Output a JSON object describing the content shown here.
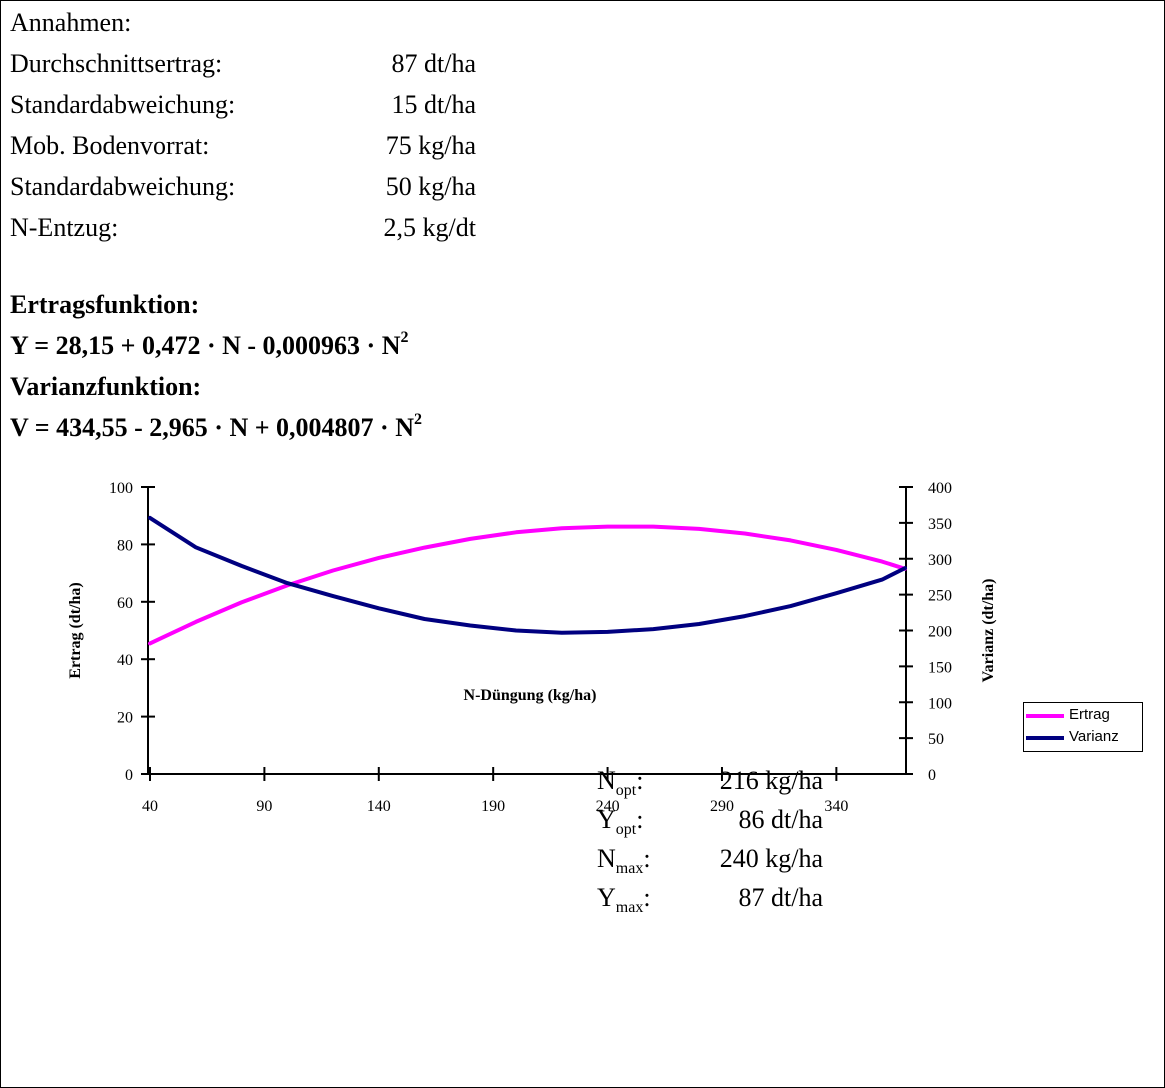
{
  "assumptions": {
    "heading": "Annahmen:",
    "rows": [
      {
        "label": "Durchschnittsertrag:",
        "value": "87 dt/ha"
      },
      {
        "label": "Standardabweichung:",
        "value": "15 dt/ha"
      },
      {
        "label": "Mob. Bodenvorrat:",
        "value": "75 kg/ha"
      },
      {
        "label": "Standardabweichung:",
        "value": "50 kg/ha"
      },
      {
        "label": "N-Entzug:",
        "value": "2,5 kg/dt"
      }
    ]
  },
  "formulas": {
    "yield_title": "Ertragsfunktion:",
    "yield_text": "Y = 28,15 + 0,472 · N - 0,000963 · N",
    "variance_title": "Varianzfunktion:",
    "variance_text": "V = 434,55 - 2,965 · N + 0,004807 · N",
    "exponent": "2"
  },
  "chart_data": {
    "type": "line",
    "xlabel": "N-Düngung (kg/ha)",
    "ylabel": "Ertrag (dt/ha)",
    "y2label": "Varianz (dt/ha)",
    "xlim": [
      40,
      370
    ],
    "ylim": [
      0,
      100
    ],
    "y2lim": [
      0,
      400
    ],
    "x_ticks": [
      40,
      90,
      140,
      190,
      240,
      290,
      340
    ],
    "y_ticks": [
      0,
      20,
      40,
      60,
      80,
      100
    ],
    "y2_ticks": [
      0,
      50,
      100,
      150,
      200,
      250,
      300,
      350,
      400
    ],
    "series": [
      {
        "name": "Ertrag",
        "axis": "left",
        "color": "#ff00ff",
        "x": [
          40,
          60,
          80,
          100,
          120,
          140,
          160,
          180,
          200,
          220,
          240,
          260,
          280,
          300,
          320,
          340,
          360,
          370
        ],
        "y": [
          45.5,
          53.0,
          59.8,
          65.7,
          70.9,
          75.3,
          78.9,
          81.9,
          84.2,
          85.6,
          86.2,
          86.2,
          85.4,
          83.8,
          81.4,
          78.1,
          74.0,
          71.5
        ]
      },
      {
        "name": "Varianz",
        "axis": "right",
        "color": "#000080",
        "x": [
          40,
          60,
          80,
          100,
          120,
          140,
          160,
          180,
          200,
          220,
          240,
          260,
          280,
          300,
          320,
          340,
          360,
          370
        ],
        "y": [
          357,
          316,
          290,
          266,
          248,
          231,
          216,
          207,
          200,
          197,
          198,
          202,
          209,
          220,
          234,
          252,
          271,
          287
        ]
      }
    ],
    "annotations": [
      {
        "symbol": "N",
        "sub": "opt",
        "value": "216 kg/ha"
      },
      {
        "symbol": "Y",
        "sub": "opt",
        "value": "86 dt/ha"
      },
      {
        "symbol": "N",
        "sub": "max",
        "value": "240 kg/ha"
      },
      {
        "symbol": "Y",
        "sub": "max",
        "value": "87 dt/ha"
      }
    ],
    "legend_position": "right"
  }
}
